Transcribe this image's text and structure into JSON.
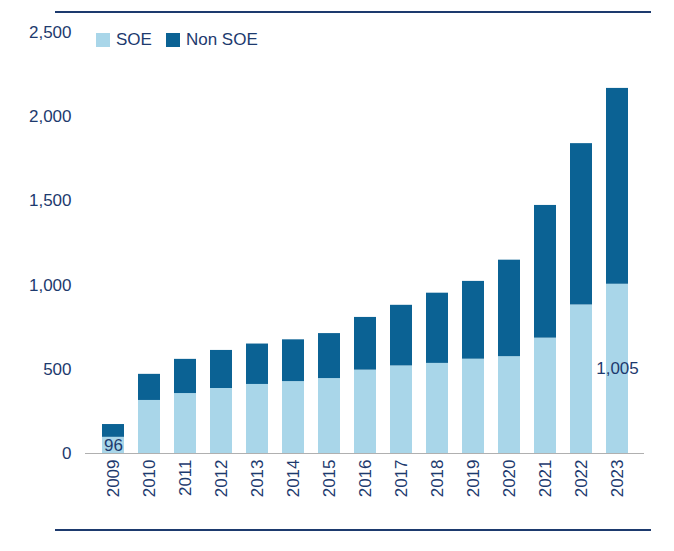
{
  "chart_data": {
    "type": "bar",
    "stacked": true,
    "legend": "top-left",
    "categories": [
      "2009",
      "2010",
      "2011",
      "2012",
      "2013",
      "2014",
      "2015",
      "2016",
      "2017",
      "2018",
      "2019",
      "2020",
      "2021",
      "2022",
      "2023"
    ],
    "series": [
      {
        "name": "SOE",
        "color": "#a9d6e9",
        "values": [
          96,
          315,
          356,
          386,
          410,
          427,
          445,
          495,
          520,
          535,
          560,
          575,
          685,
          882,
          1005
        ],
        "value_labels": [
          "96",
          null,
          null,
          null,
          null,
          null,
          null,
          null,
          null,
          null,
          null,
          null,
          null,
          null,
          "1,005"
        ]
      },
      {
        "name": "Non SOE",
        "color": "#0b6294",
        "values": [
          76,
          155,
          203,
          226,
          240,
          248,
          267,
          313,
          360,
          417,
          462,
          573,
          788,
          958,
          1163
        ]
      }
    ],
    "ylim": [
      0,
      2500
    ],
    "yticks": [
      0,
      500,
      1000,
      1500,
      2000,
      2500
    ]
  }
}
